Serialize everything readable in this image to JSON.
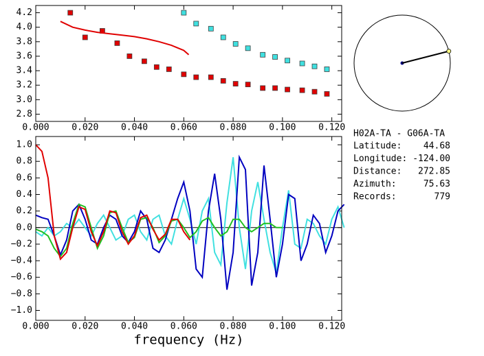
{
  "chart_data": [
    {
      "type": "scatter",
      "xlim": [
        0,
        0.124
      ],
      "ylim": [
        2.7,
        4.3
      ],
      "xticks": [
        {
          "value": 0,
          "label": "0.000"
        },
        {
          "value": 0.02,
          "label": "0.020"
        },
        {
          "value": 0.04,
          "label": "0.040"
        },
        {
          "value": 0.06,
          "label": "0.060"
        },
        {
          "value": 0.08,
          "label": "0.080"
        },
        {
          "value": 0.1,
          "label": "0.100"
        },
        {
          "value": 0.12,
          "label": "0.120"
        }
      ],
      "yticks": [
        {
          "value": 2.8,
          "label": "2.8"
        },
        {
          "value": 3.0,
          "label": "3.0"
        },
        {
          "value": 3.2,
          "label": "3.2"
        },
        {
          "value": 3.4,
          "label": "3.4"
        },
        {
          "value": 3.6,
          "label": "3.6"
        },
        {
          "value": 3.8,
          "label": "3.8"
        },
        {
          "value": 4.0,
          "label": "4.0"
        },
        {
          "value": 4.2,
          "label": "4.2"
        }
      ],
      "series": [
        {
          "color": "#e00000",
          "marker": "square",
          "x": [
            0.014,
            0.02,
            0.027,
            0.033,
            0.038,
            0.044,
            0.049,
            0.054,
            0.06,
            0.065,
            0.071,
            0.076,
            0.081,
            0.086,
            0.092,
            0.097,
            0.102,
            0.108,
            0.113,
            0.118
          ],
          "values": [
            4.2,
            3.86,
            3.95,
            3.78,
            3.6,
            3.53,
            3.45,
            3.42,
            3.35,
            3.31,
            3.31,
            3.26,
            3.22,
            3.21,
            3.16,
            3.16,
            3.14,
            3.13,
            3.11,
            3.08
          ]
        },
        {
          "color": "#40e0e0",
          "marker": "square",
          "x": [
            0.06,
            0.065,
            0.071,
            0.076,
            0.081,
            0.086,
            0.092,
            0.097,
            0.102,
            0.108,
            0.113,
            0.118
          ],
          "values": [
            4.2,
            4.05,
            3.98,
            3.86,
            3.77,
            3.71,
            3.62,
            3.59,
            3.54,
            3.5,
            3.46,
            3.42
          ]
        },
        {
          "color": "#e00000",
          "marker": "line",
          "x": [
            0.01,
            0.015,
            0.02,
            0.025,
            0.03,
            0.035,
            0.04,
            0.045,
            0.05,
            0.055,
            0.06,
            0.062
          ],
          "values": [
            4.08,
            4.0,
            3.96,
            3.93,
            3.91,
            3.89,
            3.87,
            3.84,
            3.8,
            3.75,
            3.68,
            3.62
          ]
        }
      ]
    },
    {
      "type": "line",
      "xlabel": "frequency (Hz)",
      "xlim": [
        0,
        0.124
      ],
      "ylim": [
        -1.12,
        1.1
      ],
      "xticks": [
        {
          "value": 0,
          "label": "0.000"
        },
        {
          "value": 0.02,
          "label": "0.020"
        },
        {
          "value": 0.04,
          "label": "0.040"
        },
        {
          "value": 0.06,
          "label": "0.060"
        },
        {
          "value": 0.08,
          "label": "0.080"
        },
        {
          "value": 0.1,
          "label": "0.100"
        },
        {
          "value": 0.12,
          "label": "0.120"
        }
      ],
      "yticks": [
        {
          "value": -1.0,
          "label": "−1.0"
        },
        {
          "value": -0.8,
          "label": "−0.8"
        },
        {
          "value": -0.6,
          "label": "−0.6"
        },
        {
          "value": -0.4,
          "label": "−0.4"
        },
        {
          "value": -0.2,
          "label": "−0.2"
        },
        {
          "value": 0,
          "label": "0.0"
        },
        {
          "value": 0.2,
          "label": "0.2"
        },
        {
          "value": 0.4,
          "label": "0.4"
        },
        {
          "value": 0.6,
          "label": "0.6"
        },
        {
          "value": 0.8,
          "label": "0.8"
        },
        {
          "value": 1.0,
          "label": "1.0"
        }
      ],
      "x": [
        0,
        0.0025,
        0.005,
        0.0075,
        0.01,
        0.0125,
        0.015,
        0.0175,
        0.02,
        0.0225,
        0.025,
        0.0275,
        0.03,
        0.0325,
        0.035,
        0.0375,
        0.04,
        0.0425,
        0.045,
        0.0475,
        0.05,
        0.0525,
        0.055,
        0.0575,
        0.06,
        0.0625,
        0.065,
        0.0675,
        0.07,
        0.0725,
        0.075,
        0.0775,
        0.08,
        0.0825,
        0.085,
        0.0875,
        0.09,
        0.0925,
        0.095,
        0.0975,
        0.1,
        0.1025,
        0.105,
        0.1075,
        0.11,
        0.1125,
        0.115,
        0.1175,
        0.12,
        0.1225,
        0.125
      ],
      "series": [
        {
          "color": "#40e0e0",
          "values": [
            -0.05,
            -0.1,
            0.0,
            -0.1,
            -0.05,
            0.05,
            0.0,
            0.1,
            0.0,
            -0.1,
            0.05,
            0.15,
            0.0,
            -0.15,
            -0.1,
            0.1,
            0.15,
            -0.05,
            -0.15,
            0.1,
            0.15,
            -0.1,
            -0.2,
            0.1,
            0.35,
            0.1,
            -0.2,
            0.2,
            0.35,
            -0.3,
            -0.45,
            0.3,
            0.85,
            0.0,
            -0.5,
            0.2,
            0.55,
            0.1,
            -0.3,
            -0.55,
            0.0,
            0.45,
            -0.2,
            -0.25,
            0.1,
            0.05,
            -0.1,
            -0.2,
            0.1,
            0.25,
            0.0
          ]
        },
        {
          "color": "#0000c0",
          "values": [
            0.15,
            0.12,
            0.1,
            -0.1,
            -0.33,
            -0.15,
            0.2,
            0.28,
            0.1,
            -0.15,
            -0.2,
            0.0,
            0.15,
            0.1,
            -0.1,
            -0.18,
            -0.05,
            0.2,
            0.1,
            -0.25,
            -0.3,
            -0.15,
            0.1,
            0.35,
            0.55,
            0.2,
            -0.5,
            -0.6,
            0.2,
            0.65,
            0.1,
            -0.75,
            -0.3,
            0.85,
            0.7,
            -0.7,
            -0.3,
            0.75,
            0.1,
            -0.6,
            -0.2,
            0.4,
            0.35,
            -0.4,
            -0.2,
            0.15,
            0.05,
            -0.3,
            -0.1,
            0.2,
            0.28
          ]
        },
        {
          "color": "#20c020",
          "values": [
            -0.02,
            -0.05,
            -0.1,
            -0.25,
            -0.35,
            -0.25,
            0.05,
            0.28,
            0.25,
            0.0,
            -0.25,
            -0.1,
            0.18,
            0.2,
            0.0,
            -0.18,
            -0.12,
            0.1,
            0.12,
            0.0,
            -0.18,
            -0.1,
            0.08,
            0.1,
            0.0,
            -0.12,
            -0.05,
            0.08,
            0.12,
            0.0,
            -0.1,
            -0.05,
            0.1,
            0.1,
            0.0,
            -0.05,
            0.0,
            0.05,
            0.05,
            0.0,
            0.0,
            null,
            null,
            null,
            null,
            null,
            null,
            null,
            null,
            null,
            null
          ]
        },
        {
          "color": "#e00000",
          "values": [
            1.0,
            0.92,
            0.6,
            -0.1,
            -0.38,
            -0.3,
            0.0,
            0.25,
            0.22,
            -0.05,
            -0.22,
            -0.05,
            0.2,
            0.18,
            -0.05,
            -0.2,
            -0.1,
            0.12,
            0.15,
            -0.02,
            -0.15,
            -0.08,
            0.1,
            0.1,
            -0.05,
            -0.15,
            null,
            null,
            null,
            null,
            null,
            null,
            null,
            null,
            null,
            null,
            null,
            null,
            null,
            null,
            null,
            null,
            null,
            null,
            null,
            null,
            null,
            null,
            null,
            null,
            null
          ]
        }
      ]
    }
  ],
  "info": {
    "station": "H02A-TA - G06A-TA",
    "rows": [
      {
        "label": "Latitude:",
        "value": "44.68"
      },
      {
        "label": "Longitude:",
        "value": "-124.00"
      },
      {
        "label": "Distance:",
        "value": "272.85"
      },
      {
        "label": "Azimuth:",
        "value": "75.63"
      },
      {
        "label": "Records:",
        "value": "779"
      }
    ]
  }
}
